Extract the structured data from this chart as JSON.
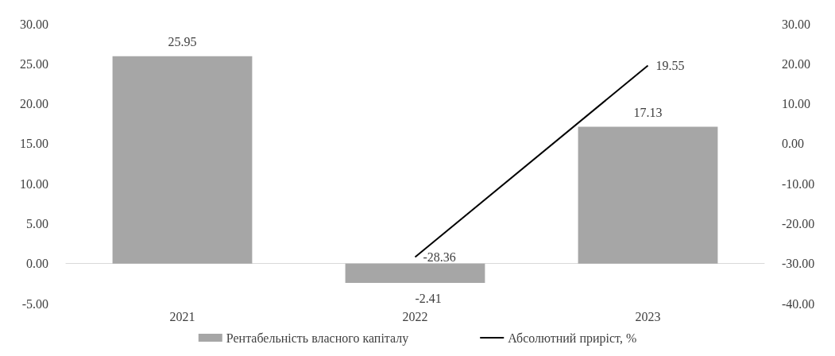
{
  "chart_data": {
    "type": "bar",
    "categories": [
      "2021",
      "2022",
      "2023"
    ],
    "series": [
      {
        "name": "Рентабельність власного капіталу",
        "color": "#a6a6a6",
        "values": [
          25.95,
          -2.41,
          17.13
        ]
      },
      {
        "name": "Абсолютний приріст, %",
        "type": "line",
        "axis": "y2",
        "color": "#000000",
        "values": [
          null,
          -28.36,
          19.55
        ]
      }
    ],
    "ylim": [
      -5,
      30
    ],
    "yticks": [
      {
        "value": -5,
        "label": "-5.00"
      },
      {
        "value": 0,
        "label": "0.00"
      },
      {
        "value": 5,
        "label": "5.00"
      },
      {
        "value": 10,
        "label": "10.00"
      },
      {
        "value": 15,
        "label": "15.00"
      },
      {
        "value": 20,
        "label": "20.00"
      },
      {
        "value": 25,
        "label": "25.00"
      },
      {
        "value": 30,
        "label": "30.00"
      }
    ],
    "y2lim": [
      -40,
      30
    ],
    "y2ticks": [
      {
        "value": -40,
        "label": "-40.00"
      },
      {
        "value": -30,
        "label": "-30.00"
      },
      {
        "value": -20,
        "label": "-20.00"
      },
      {
        "value": -10,
        "label": "-10.00"
      },
      {
        "value": 0,
        "label": "0.00"
      },
      {
        "value": 10,
        "label": "10.00"
      },
      {
        "value": 20,
        "label": "20.00"
      },
      {
        "value": 30,
        "label": "30.00"
      }
    ],
    "data_labels": true,
    "legend": "bottom",
    "marker": "none"
  }
}
